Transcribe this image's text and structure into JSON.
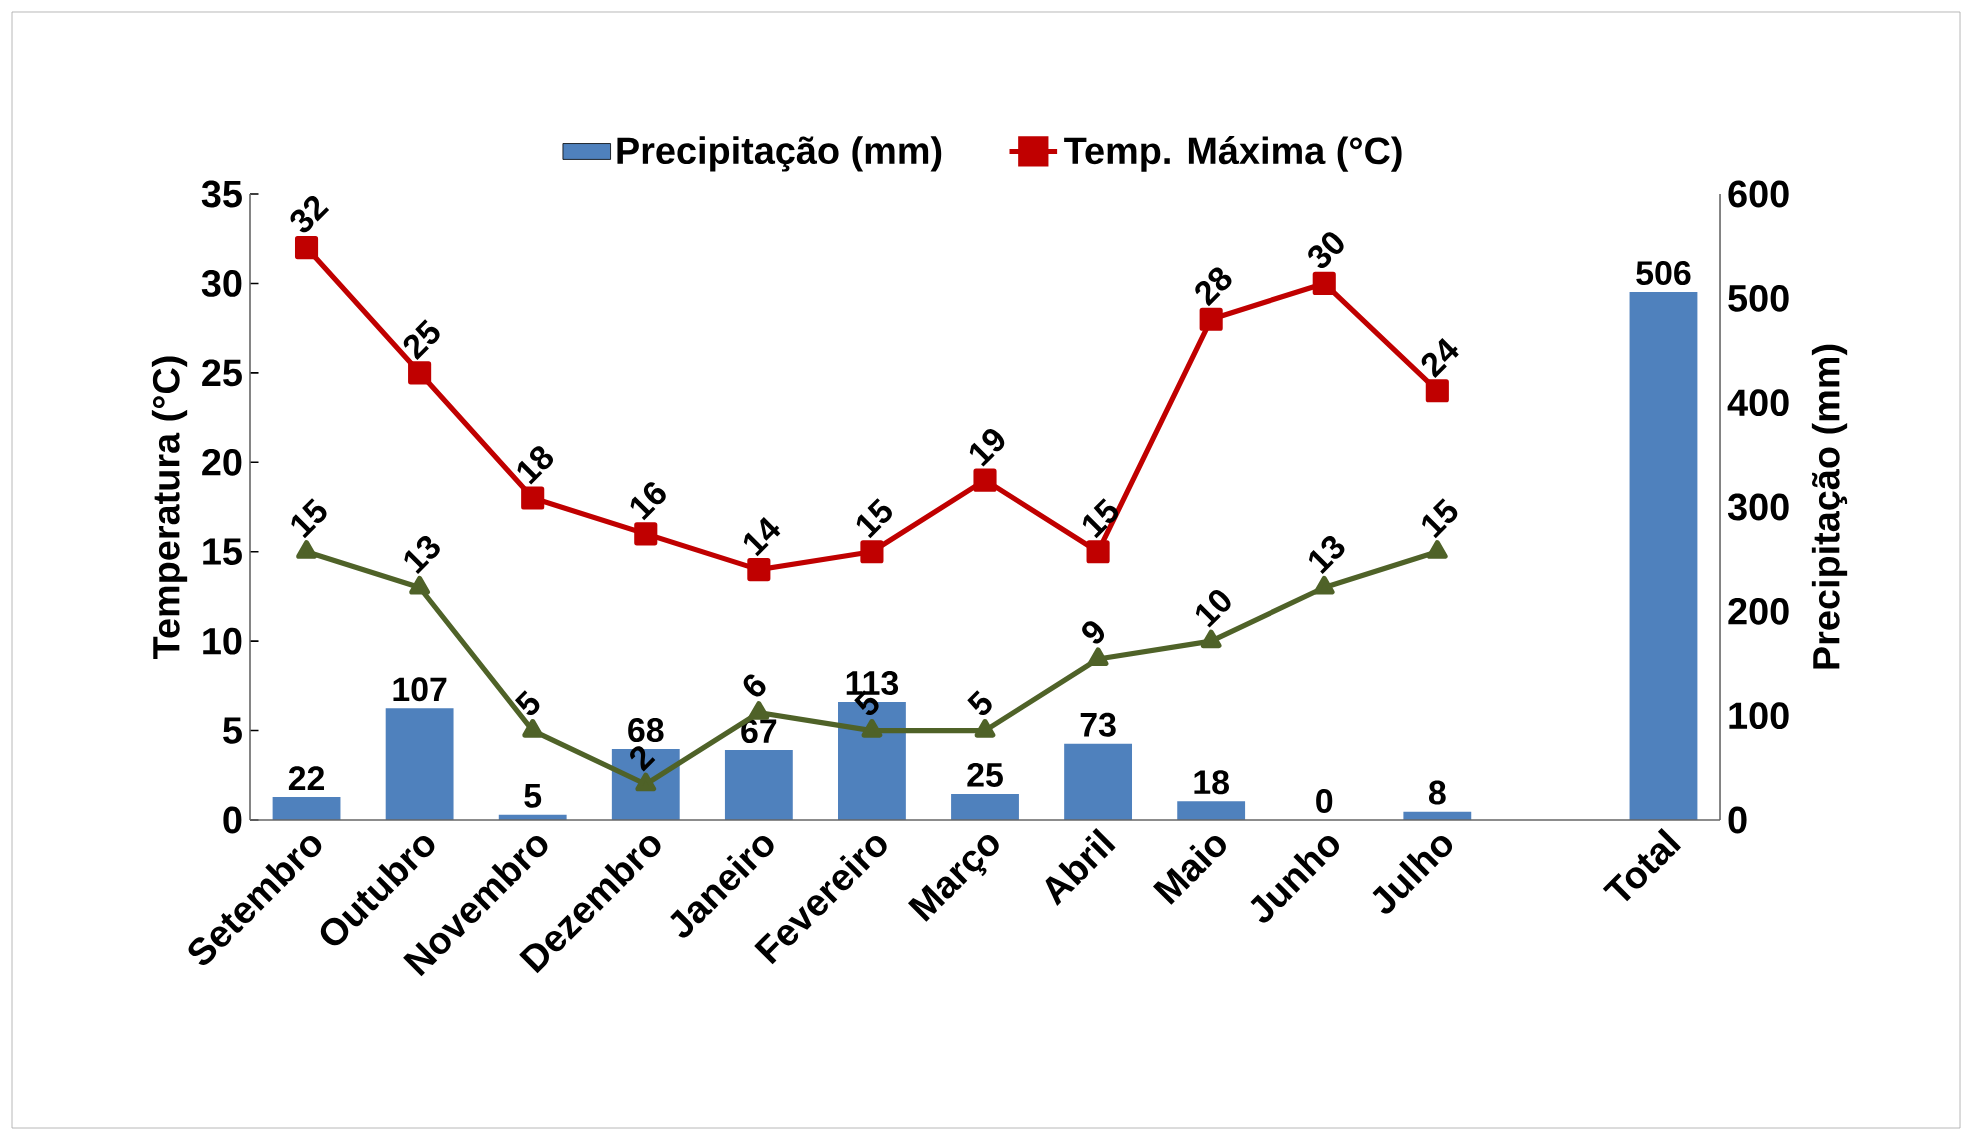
{
  "chart_data": {
    "type": "line",
    "categories": [
      "Setembro",
      "Outubro",
      "Novembro",
      "Dezembro",
      "Janeiro",
      "Fevereiro",
      "Março",
      "Abril",
      "Maio",
      "Junho",
      "Julho",
      null,
      "Total"
    ],
    "ylabel": "Temperatura (°C)",
    "y2label": "Precipitação (mm)",
    "ylim": [
      0,
      35
    ],
    "yticks": [
      0,
      5,
      10,
      15,
      20,
      25,
      30,
      35
    ],
    "y2lim": [
      0,
      600
    ],
    "y2ticks": [
      0,
      100,
      200,
      300,
      400,
      500,
      600
    ],
    "grid": false,
    "legend": "top",
    "data_labels": true,
    "series": [
      {
        "name": "Precipitação (mm)",
        "type": "bar",
        "axis": "y2",
        "color": "#4f81bd",
        "values": [
          22,
          107,
          5,
          68,
          67,
          113,
          25,
          73,
          18,
          0,
          8,
          null,
          506
        ]
      },
      {
        "name": "Temp. Máxima (°C)",
        "color": "#c00000",
        "marker": "square",
        "values": [
          32,
          25,
          18,
          16,
          14,
          15,
          19,
          15,
          28,
          30,
          24,
          null,
          null
        ]
      },
      {
        "color": "#4f6228",
        "marker": "triangle",
        "values": [
          15,
          13,
          5,
          2,
          6,
          5,
          5,
          9,
          10,
          13,
          15,
          null,
          null
        ]
      }
    ]
  }
}
